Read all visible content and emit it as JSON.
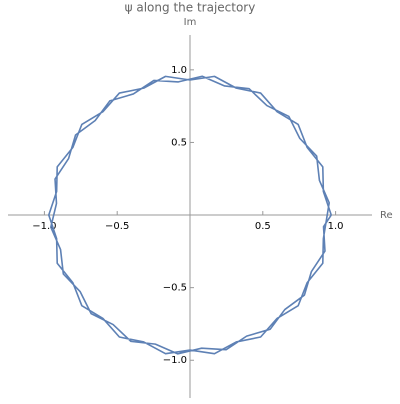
{
  "chart_data": {
    "type": "parametric-line",
    "title": "ψ along the trajectory",
    "x_label": "Re",
    "y_label": "Im",
    "xlim": [
      -1.25,
      1.25
    ],
    "ylim": [
      -1.26,
      1.24
    ],
    "xticks": [
      {
        "value": -1,
        "label": "−1.0"
      },
      {
        "value": -0.5,
        "label": "−0.5"
      },
      0.5,
      {
        "value": 1,
        "label": "1.0"
      }
    ],
    "yticks": [
      {
        "value": -1,
        "label": "−1.0"
      },
      {
        "value": -0.5,
        "label": "−0.5"
      },
      0.5,
      {
        "value": 1,
        "label": "1.0"
      }
    ],
    "series": [
      {
        "color": "#5e81b5",
        "x": [
          0.97,
          0.916,
          0.912,
          0.805,
          0.743,
          0.598,
          0.485,
          0.318,
          0.168,
          0,
          -0.168,
          -0.318,
          -0.485,
          -0.598,
          -0.743,
          -0.805,
          -0.912,
          -0.916,
          -0.97,
          -0.916,
          -0.912,
          -0.805,
          -0.743,
          -0.598,
          -0.485,
          -0.318,
          -0.168,
          0,
          0.168,
          0.318,
          0.485,
          0.598,
          0.743,
          0.805,
          0.912,
          0.916,
          0.956,
          0.889,
          0.87,
          0.754,
          0.679,
          0.528,
          0.406,
          0.238,
          0.084,
          -0.08,
          -0.248,
          -0.389,
          -0.551,
          -0.651,
          -0.786,
          -0.834,
          -0.927,
          -0.917,
          -0.956,
          -0.889,
          -0.87,
          -0.754,
          -0.679,
          -0.528,
          -0.406,
          -0.238,
          -0.084,
          0.08,
          0.248,
          0.389,
          0.551,
          0.651,
          0.786,
          0.834,
          0.927,
          0.917,
          0.97
        ],
        "y": [
          0,
          0.162,
          0.332,
          0.465,
          0.624,
          0.712,
          0.84,
          0.874,
          0.955,
          0.93,
          0.955,
          0.874,
          0.84,
          0.712,
          0.624,
          0.465,
          0.332,
          0.162,
          0,
          -0.162,
          -0.332,
          -0.465,
          -0.624,
          -0.712,
          -0.84,
          -0.874,
          -0.955,
          -0.93,
          -0.955,
          -0.874,
          -0.84,
          -0.712,
          -0.624,
          -0.465,
          -0.332,
          -0.162,
          0.084,
          0.238,
          0.406,
          0.528,
          0.679,
          0.754,
          0.87,
          0.889,
          0.956,
          0.917,
          0.927,
          0.834,
          0.786,
          0.651,
          0.551,
          0.389,
          0.248,
          0.08,
          -0.084,
          -0.238,
          -0.406,
          -0.528,
          -0.679,
          -0.754,
          -0.87,
          -0.889,
          -0.956,
          -0.917,
          -0.927,
          -0.834,
          -0.786,
          -0.651,
          -0.551,
          -0.389,
          -0.248,
          -0.08,
          0
        ]
      }
    ]
  }
}
